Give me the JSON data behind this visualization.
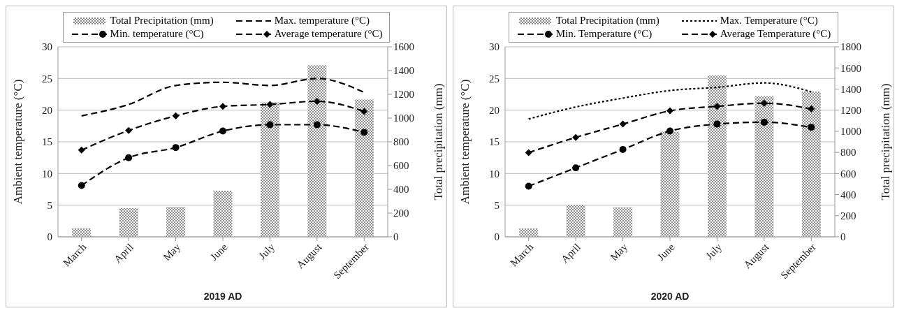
{
  "chart_data": [
    {
      "type": "bar",
      "xlabel": "2019 AD",
      "ylabel": "Ambient temperature (°C)",
      "y2label": "Total precipitation (mm)",
      "categories": [
        "March",
        "April",
        "May",
        "June",
        "July",
        "August",
        "September"
      ],
      "ylim": [
        0,
        30
      ],
      "yticks": [
        0,
        5,
        10,
        15,
        20,
        25,
        30
      ],
      "y2lim": [
        0,
        1600
      ],
      "y2ticks": [
        0,
        200,
        400,
        600,
        800,
        1000,
        1200,
        1400,
        1600
      ],
      "grid": "y",
      "legend": "top",
      "series": [
        {
          "name": "Total Precipitation (mm)",
          "axis": "y2",
          "color": "#8c8c8c",
          "values": [
            73,
            241,
            253,
            388,
            1132,
            1444,
            1156
          ]
        },
        {
          "name": "Max. temperature (°C)",
          "type": "line",
          "color": "#000000",
          "line_style": "dashed",
          "marker": "none",
          "values": [
            19.1,
            20.9,
            23.9,
            24.4,
            23.9,
            25.0,
            22.8
          ]
        },
        {
          "name": "Min. temperature (°C)",
          "type": "line",
          "color": "#000000",
          "line_style": "dashed",
          "marker": "circle",
          "values": [
            8.1,
            12.5,
            14.1,
            16.7,
            17.7,
            17.7,
            16.5
          ]
        },
        {
          "name": "Average temperature (°C)",
          "type": "line",
          "color": "#000000",
          "line_style": "dashed",
          "marker": "diamond",
          "values": [
            13.7,
            16.8,
            19.1,
            20.6,
            20.9,
            21.4,
            19.8
          ]
        }
      ]
    },
    {
      "type": "bar",
      "xlabel": "2020 AD",
      "ylabel": "Ambient temperature (°C)",
      "y2label": "Total precipitation (mm)",
      "categories": [
        "March",
        "April",
        "May",
        "June",
        "July",
        "August",
        "September"
      ],
      "ylim": [
        0,
        30
      ],
      "yticks": [
        0,
        5,
        10,
        15,
        20,
        25,
        30
      ],
      "y2lim": [
        0,
        1800
      ],
      "y2ticks": [
        0,
        200,
        400,
        600,
        800,
        1000,
        1200,
        1400,
        1600,
        1800
      ],
      "grid": "y",
      "legend": "top",
      "series": [
        {
          "name": "Total Precipitation (mm)",
          "axis": "y2",
          "color": "#8c8c8c",
          "values": [
            81,
            301,
            282,
            996,
            1528,
            1332,
            1376
          ]
        },
        {
          "name": "Max. Temperature (°C)",
          "type": "line",
          "color": "#000000",
          "line_style": "dotted",
          "marker": "none",
          "values": [
            18.6,
            20.5,
            21.9,
            23.1,
            23.6,
            24.3,
            22.9
          ]
        },
        {
          "name": "Min. Temperature (°C)",
          "type": "line",
          "color": "#000000",
          "line_style": "dashed",
          "marker": "circle",
          "values": [
            8.0,
            10.9,
            13.8,
            16.7,
            17.8,
            18.1,
            17.3
          ]
        },
        {
          "name": "Average Temperature (°C)",
          "type": "line",
          "color": "#000000",
          "line_style": "dashed",
          "marker": "diamond",
          "values": [
            13.3,
            15.7,
            17.8,
            19.9,
            20.6,
            21.1,
            20.2
          ]
        }
      ]
    }
  ]
}
